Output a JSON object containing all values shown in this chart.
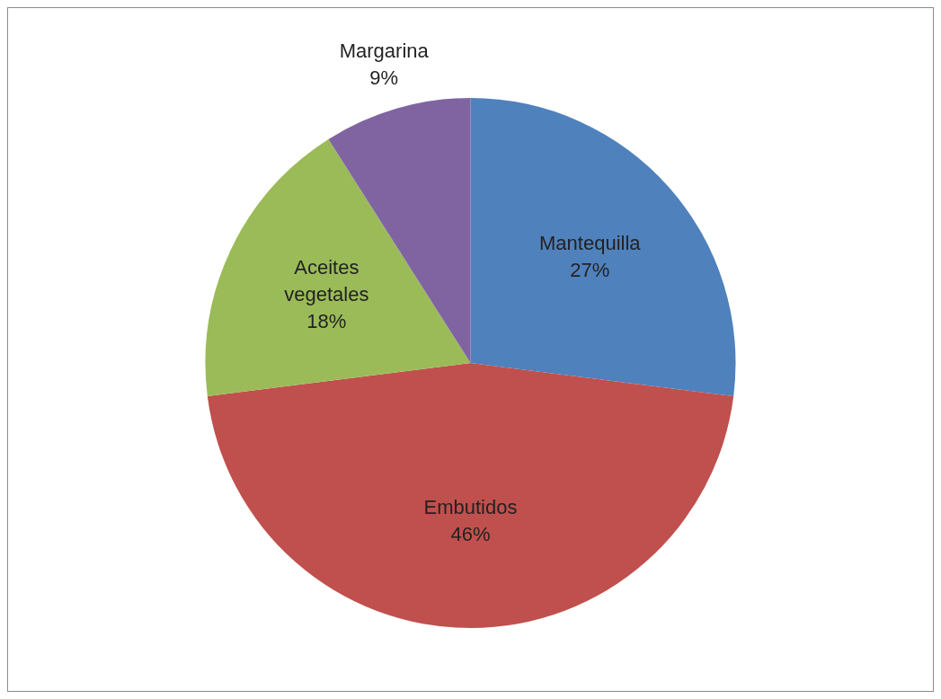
{
  "chart_data": {
    "type": "pie",
    "categories": [
      "Mantequilla",
      "Embutidos",
      "Aceites vegetales",
      "Margarina"
    ],
    "values": [
      27,
      46,
      18,
      9
    ],
    "colors": [
      "#4f81bd",
      "#c0504d",
      "#9bbb59",
      "#8064a2"
    ],
    "value_labels": [
      "27%",
      "46%",
      "18%",
      "9%"
    ],
    "legend": false
  }
}
